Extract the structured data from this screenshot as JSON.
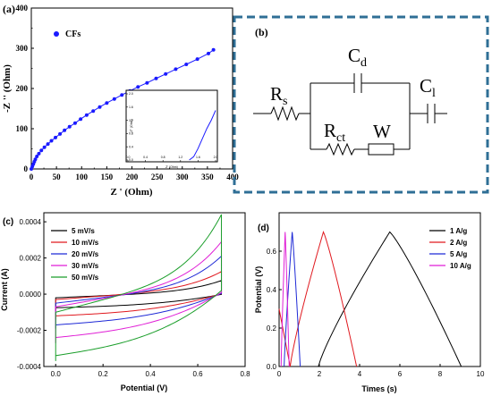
{
  "panels": {
    "a": {
      "label": "(a)"
    },
    "b": {
      "label": "(b)"
    },
    "c": {
      "label": "(c)"
    },
    "d": {
      "label": "(d)"
    }
  },
  "circuit": {
    "rs_main": "R",
    "rs_sub": "s",
    "cd_main": "C",
    "cd_sub": "d",
    "cl_main": "C",
    "cl_sub": "l",
    "rct_main": "R",
    "rct_sub": "ct",
    "w": "W",
    "frame_color": "#2f6f96"
  },
  "chart_data": [
    {
      "id": "a",
      "type": "scatter",
      "title": "",
      "xlabel": "Z ' (Ohm)",
      "ylabel": "-Z '' (Ohm)",
      "xlim": [
        0,
        400
      ],
      "ylim": [
        0,
        400
      ],
      "xticks": [
        "0",
        "50",
        "100",
        "150",
        "200",
        "250",
        "300",
        "350",
        "400"
      ],
      "yticks": [
        "0",
        "100",
        "200",
        "300",
        "400"
      ],
      "legend": {
        "position": "top-left",
        "entries": [
          "CFs"
        ]
      },
      "series": [
        {
          "name": "CFs",
          "color": "#1a1aff",
          "x": [
            0,
            2,
            4,
            6,
            8,
            11,
            15,
            20,
            26,
            33,
            40,
            48,
            57,
            66,
            76,
            87,
            98,
            110,
            123,
            136,
            150,
            165,
            180,
            196,
            212,
            230,
            248,
            267,
            287,
            308,
            330,
            352,
            362
          ],
          "y": [
            0,
            6,
            12,
            18,
            24,
            31,
            38,
            46,
            54,
            62,
            70,
            78,
            87,
            96,
            105,
            114,
            124,
            134,
            144,
            154,
            164,
            174,
            184,
            194,
            204,
            214,
            225,
            236,
            248,
            260,
            273,
            287,
            296
          ]
        }
      ],
      "inset": {
        "xticks": [
          "0.0",
          "0.4",
          "0.8",
          "1.2",
          "1.6",
          "2.0"
        ],
        "yticks": [
          "0.0",
          "0.4",
          "0.8",
          "1.2",
          "1.6",
          "2.0"
        ],
        "xlabel": "Z' (Ohm)",
        "ylabel": "-Z'' (Ohm)",
        "xlim": [
          0,
          2.0
        ],
        "ylim": [
          0,
          2.0
        ],
        "x": [
          1.4,
          1.5,
          1.6,
          1.7,
          1.8,
          1.9,
          2.0
        ],
        "y": [
          0.0,
          0.1,
          0.35,
          0.65,
          0.95,
          1.2,
          1.5
        ]
      }
    },
    {
      "id": "c",
      "type": "line",
      "title": "",
      "xlabel": "Potential (V)",
      "ylabel": "Current (A)",
      "xlim": [
        -0.05,
        0.8
      ],
      "ylim": [
        -0.0004,
        0.00045
      ],
      "xticks": [
        "0.0",
        "0.2",
        "0.4",
        "0.6",
        "0.8"
      ],
      "yticks": [
        "-0.0004",
        "-0.0002",
        "0.0000",
        "0.0002",
        "0.0004"
      ],
      "legend": {
        "position": "top-left"
      },
      "series": [
        {
          "name": "5 mV/s",
          "color": "#000000",
          "imax": 7.5e-05,
          "imin": -9e-05,
          "fwd0": -2e-05,
          "rev0": -7.5e-05,
          "slope": 4e-05
        },
        {
          "name": "10 mV/s",
          "color": "#e0191f",
          "imax": 0.000125,
          "imin": -0.00014,
          "fwd0": -3e-05,
          "rev0": -0.00012,
          "slope": 7e-05
        },
        {
          "name": "20 mV/s",
          "color": "#1f2ad6",
          "imax": 0.00021,
          "imin": -0.00019,
          "fwd0": -5e-05,
          "rev0": -0.00017,
          "slope": 0.00011
        },
        {
          "name": "30 mV/s",
          "color": "#e01fd6",
          "imax": 0.00029,
          "imin": -0.00027,
          "fwd0": -7e-05,
          "rev0": -0.00024,
          "slope": 0.00016
        },
        {
          "name": "50 mV/s",
          "color": "#1a9e2a",
          "imax": 0.00044,
          "imin": -0.00037,
          "fwd0": -0.0001,
          "rev0": -0.00034,
          "slope": 0.00024
        }
      ]
    },
    {
      "id": "d",
      "type": "line",
      "title": "",
      "xlabel": "Times (s)",
      "ylabel": "Potential (V)",
      "xlim": [
        0,
        10
      ],
      "ylim": [
        0,
        0.8
      ],
      "xticks": [
        "0",
        "2",
        "4",
        "6",
        "8",
        "10"
      ],
      "yticks": [
        "0.0",
        "0.2",
        "0.4",
        "0.6"
      ],
      "legend": {
        "position": "top-right"
      },
      "series": [
        {
          "name": "1 A/g",
          "color": "#000000",
          "x": [
            1.95,
            5.5,
            9.05
          ],
          "y": [
            0.0,
            0.7,
            0.0
          ]
        },
        {
          "name": "2 A/g",
          "color": "#e0191f",
          "x": [
            0.55,
            2.2,
            3.85
          ],
          "y": [
            0.0,
            0.7,
            0.0
          ]
        },
        {
          "name": "5 A/g",
          "color": "#1f2ad6",
          "x": [
            0.25,
            0.65,
            1.05
          ],
          "y": [
            0.0,
            0.7,
            0.0
          ]
        },
        {
          "name": "10 A/g",
          "color": "#e01fd6",
          "x": [
            0.1,
            0.3,
            0.5
          ],
          "y": [
            0.0,
            0.7,
            0.0
          ]
        }
      ],
      "initial_discharge": {
        "x": [
          0.0,
          0.55
        ],
        "y": [
          0.3,
          0.0
        ]
      }
    }
  ]
}
